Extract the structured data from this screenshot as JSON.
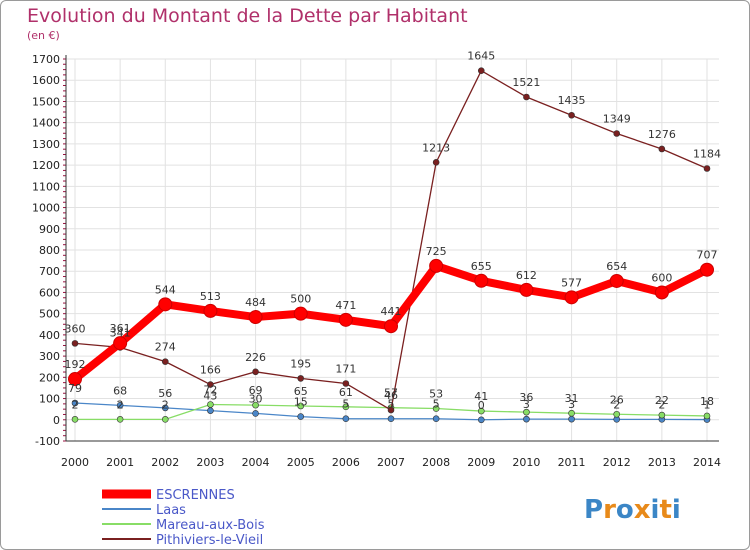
{
  "chart_data": {
    "type": "line",
    "title": "Evolution du Montant de la Dette par Habitant",
    "subtitle": "(en €)",
    "xlabel": "",
    "ylabel": "",
    "ylim": [
      -100,
      1700
    ],
    "yticks": [
      -100,
      0,
      100,
      200,
      300,
      400,
      500,
      600,
      700,
      800,
      900,
      1000,
      1100,
      1200,
      1300,
      1400,
      1500,
      1600,
      1700
    ],
    "categories": [
      "2000",
      "2001",
      "2002",
      "2003",
      "2004",
      "2005",
      "2006",
      "2007",
      "2008",
      "2009",
      "2010",
      "2011",
      "2012",
      "2013",
      "2014"
    ],
    "grid": true,
    "legend_position": "bottom-left",
    "series": [
      {
        "name": "ESCRENNES",
        "color": "#ff0000",
        "values": [
          192,
          361,
          544,
          513,
          484,
          500,
          471,
          441,
          725,
          655,
          612,
          577,
          654,
          600,
          707
        ]
      },
      {
        "name": "Laas",
        "color": "#4a86c8",
        "values": [
          79,
          68,
          56,
          43,
          30,
          15,
          5,
          5,
          5,
          0,
          3,
          3,
          2,
          2,
          1
        ]
      },
      {
        "name": "Mareau-aux-Bois",
        "color": "#88dd66",
        "values": [
          2,
          2,
          2,
          72,
          69,
          65,
          61,
          57,
          53,
          41,
          36,
          31,
          26,
          22,
          18
        ]
      },
      {
        "name": "Pithiviers-le-Vieil",
        "color": "#7a2020",
        "values": [
          360,
          341,
          274,
          166,
          226,
          195,
          171,
          46,
          1213,
          1645,
          1521,
          1435,
          1349,
          1276,
          1184
        ]
      }
    ]
  },
  "logo": {
    "text": "Proxiti",
    "colors": [
      "#3b86c6",
      "#e88a1a",
      "#3b86c6",
      "#e88a1a",
      "#3b86c6",
      "#e88a1a",
      "#3b86c6"
    ]
  }
}
